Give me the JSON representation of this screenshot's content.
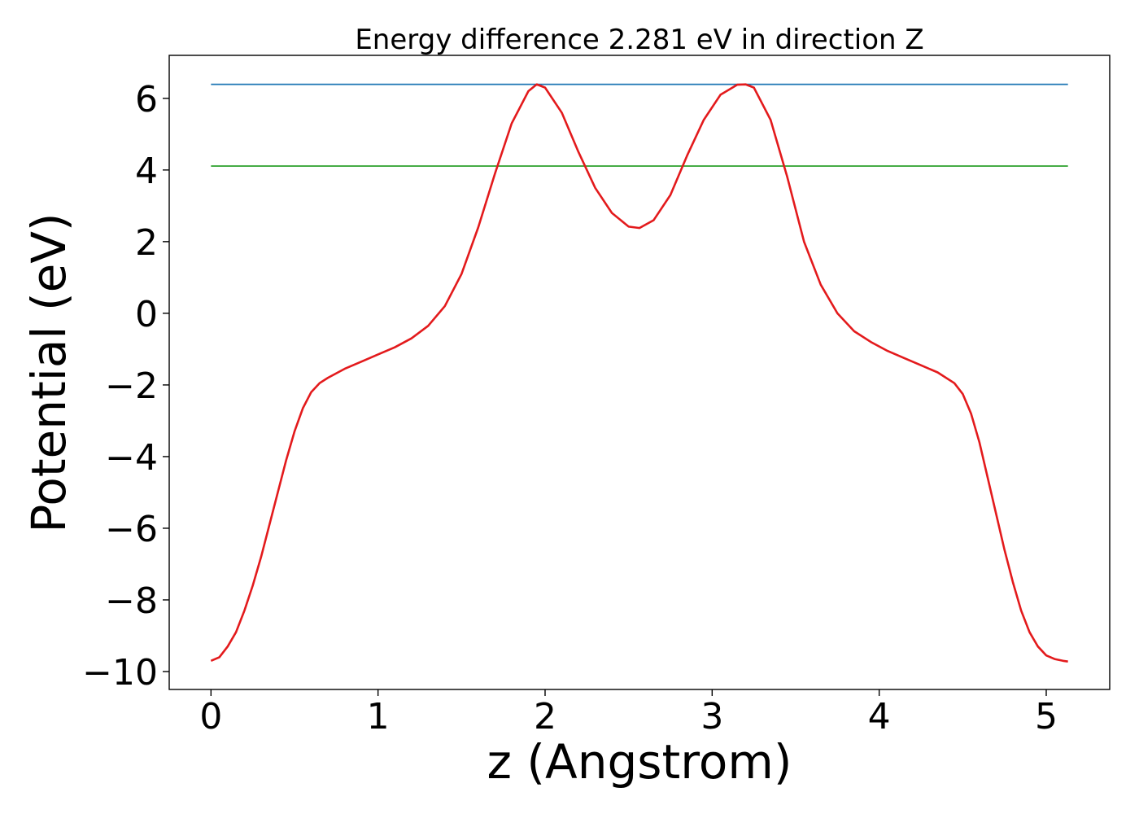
{
  "chart_data": {
    "type": "line",
    "title": "Energy difference 2.281 eV in direction Z",
    "xlabel": "z (Angstrom)",
    "ylabel": "Potential (eV)",
    "xlim": [
      -0.25,
      5.38
    ],
    "ylim": [
      -10.5,
      7.2
    ],
    "x_ticks": [
      0,
      1,
      2,
      3,
      4,
      5
    ],
    "x_tick_labels": [
      "0",
      "1",
      "2",
      "3",
      "4",
      "5"
    ],
    "y_ticks": [
      -10,
      -8,
      -6,
      -4,
      -2,
      0,
      2,
      4,
      6
    ],
    "y_tick_labels": [
      "−10",
      "−8",
      "−6",
      "−4",
      "−2",
      "0",
      "2",
      "4",
      "6"
    ],
    "grid": false,
    "series": [
      {
        "color": "#1f77b4",
        "x": [
          0,
          5.13
        ],
        "y": [
          6.39,
          6.39
        ]
      },
      {
        "color": "#2ca02c",
        "x": [
          0,
          5.13
        ],
        "y": [
          4.11,
          4.11
        ]
      },
      {
        "color": "#e31a1c",
        "x": [
          0,
          0.05,
          0.1,
          0.15,
          0.2,
          0.25,
          0.3,
          0.35,
          0.4,
          0.45,
          0.5,
          0.55,
          0.6,
          0.65,
          0.7,
          0.8,
          0.9,
          1.0,
          1.1,
          1.2,
          1.3,
          1.4,
          1.5,
          1.6,
          1.7,
          1.8,
          1.9,
          1.95,
          2.0,
          2.1,
          2.2,
          2.3,
          2.4,
          2.5,
          2.565,
          2.65,
          2.75,
          2.85,
          2.95,
          3.05,
          3.15,
          3.2,
          3.25,
          3.35,
          3.45,
          3.55,
          3.65,
          3.75,
          3.85,
          3.95,
          4.05,
          4.15,
          4.25,
          4.35,
          4.45,
          4.5,
          4.55,
          4.6,
          4.65,
          4.7,
          4.75,
          4.8,
          4.85,
          4.9,
          4.95,
          5.0,
          5.05,
          5.1,
          5.13
        ],
        "y": [
          -9.7,
          -9.6,
          -9.3,
          -8.9,
          -8.3,
          -7.6,
          -6.8,
          -5.9,
          -5.0,
          -4.1,
          -3.3,
          -2.65,
          -2.2,
          -1.95,
          -1.8,
          -1.55,
          -1.35,
          -1.15,
          -0.95,
          -0.7,
          -0.35,
          0.2,
          1.1,
          2.4,
          3.9,
          5.3,
          6.2,
          6.39,
          6.3,
          5.6,
          4.5,
          3.5,
          2.8,
          2.42,
          2.38,
          2.6,
          3.3,
          4.4,
          5.4,
          6.1,
          6.38,
          6.39,
          6.3,
          5.4,
          3.8,
          2.0,
          0.8,
          0.0,
          -0.5,
          -0.8,
          -1.05,
          -1.25,
          -1.45,
          -1.65,
          -1.95,
          -2.25,
          -2.8,
          -3.6,
          -4.6,
          -5.6,
          -6.6,
          -7.5,
          -8.3,
          -8.9,
          -9.3,
          -9.55,
          -9.65,
          -9.7,
          -9.72
        ]
      }
    ]
  }
}
